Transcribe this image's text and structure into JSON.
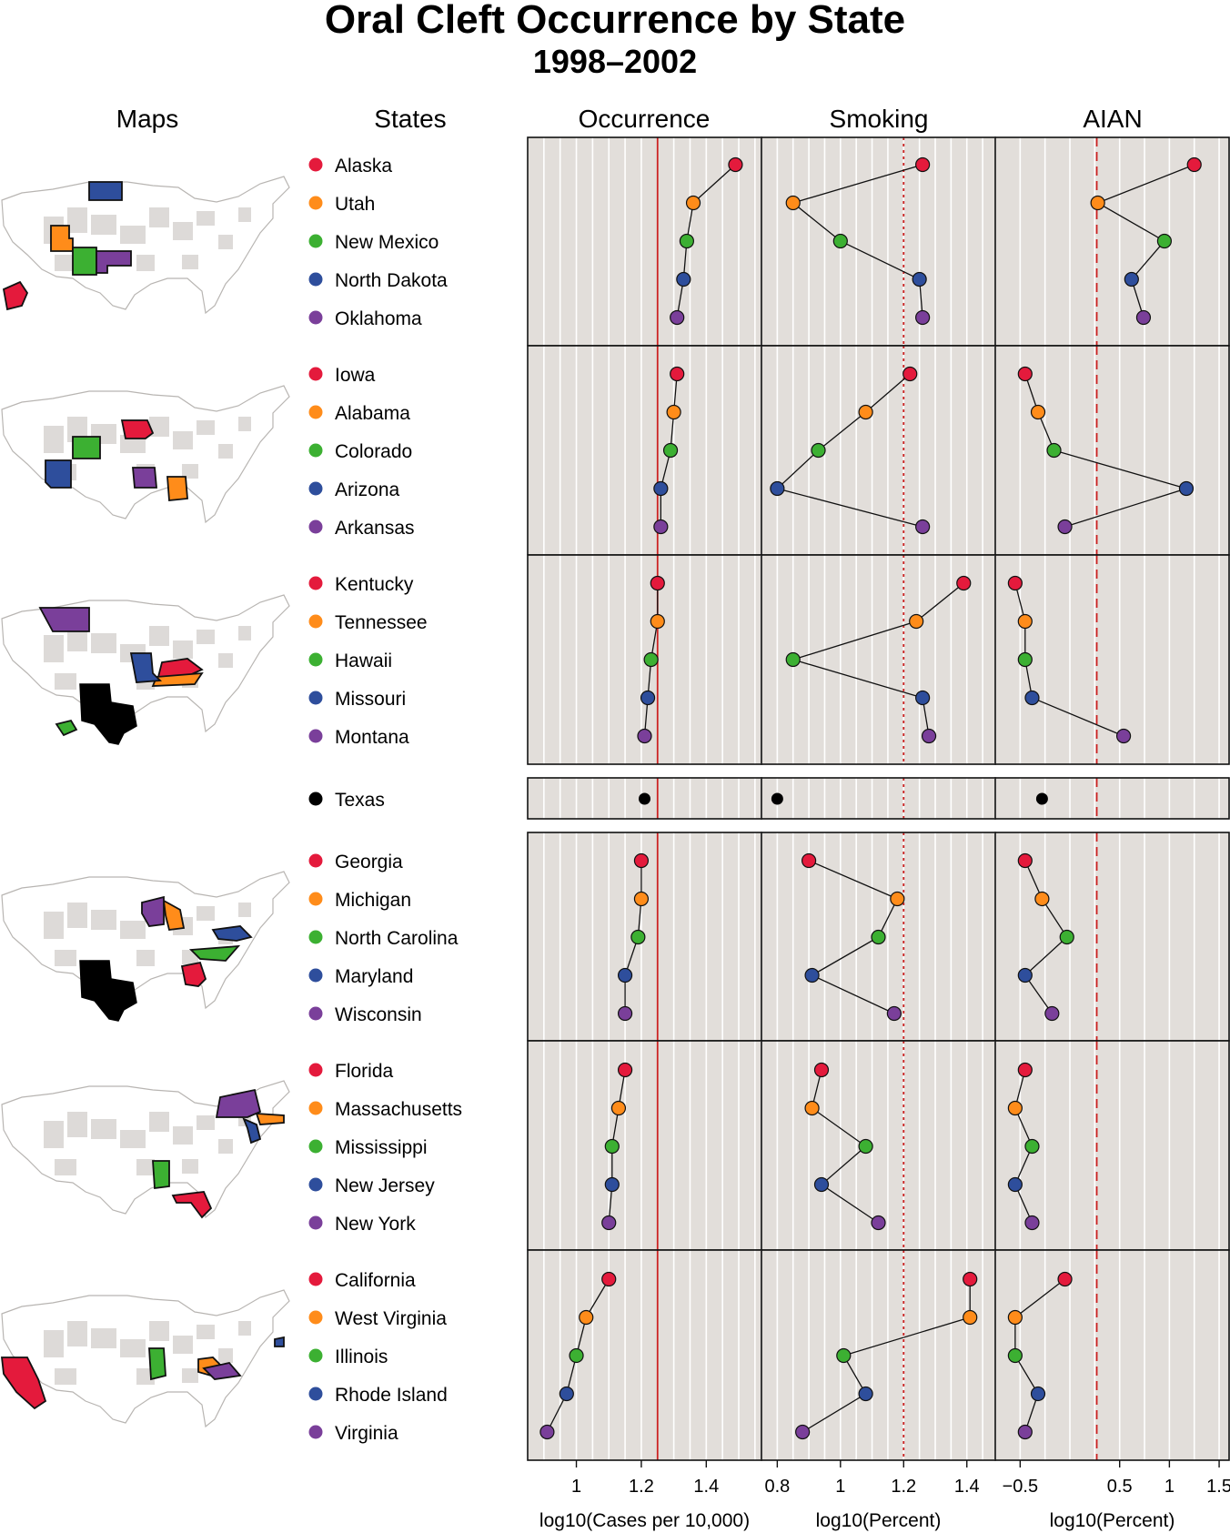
{
  "title": "Oral Cleft Occurrence by State",
  "subtitle": "1998–2002",
  "column_headers": {
    "maps": "Maps",
    "states": "States",
    "occurrence": "Occurrence",
    "smoking": "Smoking",
    "aian": "AIAN"
  },
  "colors": {
    "slot1": "#e41a3c",
    "slot2": "#ff8c1a",
    "slot3": "#3cb032",
    "slot4": "#2e4e9c",
    "slot5": "#7a3f9a",
    "median": "#000000",
    "panel_bg": "#e2deda",
    "map_land": "#dddad8",
    "ref_line": "#cc2222"
  },
  "chart_data": {
    "type": "dot-plot-linked-micromap",
    "groups": [
      {
        "states": [
          "Alaska",
          "Utah",
          "New Mexico",
          "North Dakota",
          "Oklahoma"
        ],
        "occurrence": [
          1.49,
          1.36,
          1.34,
          1.33,
          1.31
        ],
        "smoking": [
          1.26,
          0.85,
          1.0,
          1.25,
          1.26
        ],
        "aian": [
          1.25,
          0.28,
          0.95,
          0.62,
          0.74
        ]
      },
      {
        "states": [
          "Iowa",
          "Alabama",
          "Colorado",
          "Arizona",
          "Arkansas"
        ],
        "occurrence": [
          1.31,
          1.3,
          1.29,
          1.26,
          1.26
        ],
        "smoking": [
          1.22,
          1.08,
          0.93,
          0.8,
          1.26
        ],
        "aian": [
          -0.45,
          -0.32,
          -0.16,
          1.17,
          -0.05
        ]
      },
      {
        "states": [
          "Kentucky",
          "Tennessee",
          "Hawaii",
          "Missouri",
          "Montana"
        ],
        "occurrence": [
          1.25,
          1.25,
          1.23,
          1.22,
          1.21
        ],
        "smoking": [
          1.39,
          1.24,
          0.85,
          1.26,
          1.28
        ],
        "aian": [
          -0.55,
          -0.45,
          -0.45,
          -0.38,
          0.54
        ]
      },
      {
        "states": [
          "Texas"
        ],
        "occurrence": [
          1.21
        ],
        "smoking": [
          0.8
        ],
        "aian": [
          -0.28
        ]
      },
      {
        "states": [
          "Georgia",
          "Michigan",
          "North Carolina",
          "Maryland",
          "Wisconsin"
        ],
        "occurrence": [
          1.2,
          1.2,
          1.19,
          1.15,
          1.15
        ],
        "smoking": [
          0.9,
          1.18,
          1.12,
          0.91,
          1.17
        ],
        "aian": [
          -0.45,
          -0.28,
          -0.03,
          -0.45,
          -0.18
        ]
      },
      {
        "states": [
          "Florida",
          "Massachusetts",
          "Mississippi",
          "New Jersey",
          "New York"
        ],
        "occurrence": [
          1.15,
          1.13,
          1.11,
          1.11,
          1.1
        ],
        "smoking": [
          0.94,
          0.91,
          1.08,
          0.94,
          1.12
        ],
        "aian": [
          -0.45,
          -0.55,
          -0.38,
          -0.55,
          -0.38
        ]
      },
      {
        "states": [
          "California",
          "West Virginia",
          "Illinois",
          "Rhode Island",
          "Virginia"
        ],
        "occurrence": [
          1.1,
          1.03,
          1.0,
          0.97,
          0.91
        ],
        "smoking": [
          1.41,
          1.41,
          1.01,
          1.08,
          0.88
        ],
        "aian": [
          -0.05,
          -0.55,
          -0.55,
          -0.32,
          -0.45
        ]
      }
    ],
    "panels": [
      {
        "key": "occurrence",
        "xlabel": "log10(Cases per 10,000)",
        "xlim": [
          0.85,
          1.57
        ],
        "ticks": [
          1,
          1.2,
          1.4
        ],
        "tick_labels": [
          "1",
          "1.2",
          "1.4"
        ],
        "ref_line": 1.25,
        "ref_style": "solid"
      },
      {
        "key": "smoking",
        "xlabel": "log10(Percent)",
        "xlim": [
          0.75,
          1.49
        ],
        "ticks": [
          0.8,
          1,
          1.2,
          1.4
        ],
        "tick_labels": [
          "0.8",
          "1",
          "1.2",
          "1.4"
        ],
        "ref_line": 1.2,
        "ref_style": "dotted"
      },
      {
        "key": "aian",
        "xlabel": "log10(Percent)",
        "xlim": [
          -0.75,
          1.6
        ],
        "ticks": [
          -0.5,
          0.5,
          1,
          1.5
        ],
        "tick_labels": [
          "−0.5",
          "0.5",
          "1",
          "1.5"
        ],
        "ref_line": 0.27,
        "ref_style": "dashed"
      }
    ]
  }
}
